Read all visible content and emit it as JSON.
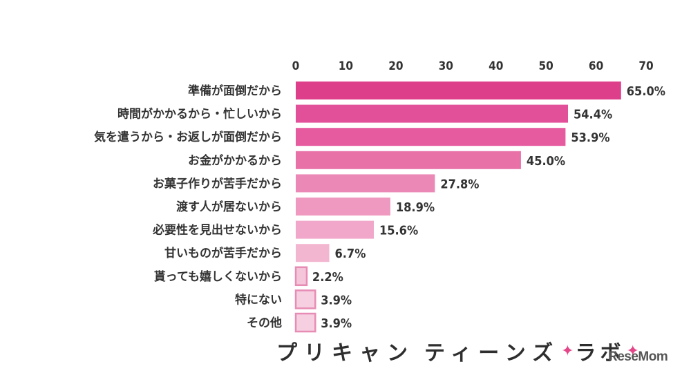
{
  "chart_data": {
    "type": "bar",
    "orientation": "horizontal",
    "categories": [
      "準備が面倒だから",
      "時間がかかるから・忙しいから",
      "気を遣うから・お返しが面倒だから",
      "お金がかかるから",
      "お菓子作りが苦手だから",
      "渡す人が居ないから",
      "必要性を見出せないから",
      "甘いものが苦手だから",
      "貰っても嬉しくないから",
      "特にない",
      "その他"
    ],
    "values": [
      65.0,
      54.4,
      53.9,
      45.0,
      27.8,
      18.9,
      15.6,
      6.7,
      2.2,
      3.9,
      3.9
    ],
    "value_labels": [
      "65.0%",
      "54.4%",
      "53.9%",
      "45.0%",
      "27.8%",
      "18.9%",
      "15.6%",
      "6.7%",
      "2.2%",
      "3.9%",
      "3.9%"
    ],
    "xticks": [
      "0",
      "10",
      "20",
      "30",
      "40",
      "50",
      "60",
      "70"
    ],
    "xlim": [
      0,
      70
    ],
    "xaxis_position": "top",
    "grid": false,
    "title": "",
    "xlabel": "",
    "ylabel": "",
    "bar_colors": [
      "#de3f8a",
      "#e2509a",
      "#e65aa0",
      "#e872a8",
      "#ec88b6",
      "#ef98c0",
      "#f1a7c9",
      "#f3b6d1",
      "#f5c6da",
      "#f6cfe0",
      "#f6cfe0"
    ],
    "bar_border_color": "#e78db5"
  },
  "footer": {
    "brand_a": "プリキャン",
    "brand_b": "ティーンズ",
    "brand_c": "ラボ",
    "sparkle_icon": "✦",
    "logo": "ReseMom"
  }
}
